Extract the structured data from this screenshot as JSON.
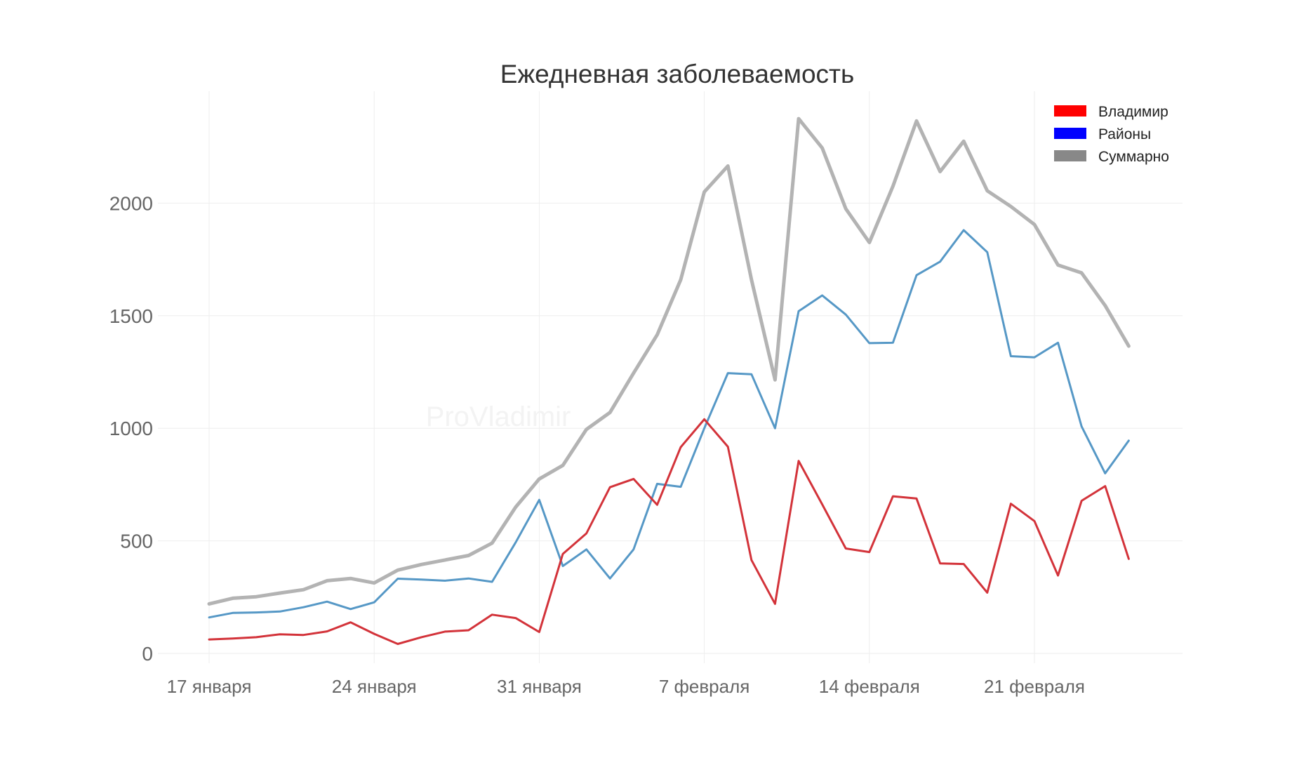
{
  "chart_data": {
    "type": "line",
    "title": "Ежедневная заболеваемость",
    "watermark": "ProVladimir",
    "xlabel": "",
    "ylabel": "",
    "ylim": [
      -40,
      2500
    ],
    "yticks": [
      0,
      500,
      1000,
      1500,
      2000
    ],
    "xtick_labels": [
      {
        "day": 0,
        "label": "17 января"
      },
      {
        "day": 7,
        "label": "24 января"
      },
      {
        "day": 14,
        "label": "31 января"
      },
      {
        "day": 21,
        "label": "7 февраля"
      },
      {
        "day": 28,
        "label": "14 февраля"
      },
      {
        "day": 35,
        "label": "21 февраля"
      }
    ],
    "x": [
      0,
      1,
      2,
      3,
      4,
      5,
      6,
      7,
      8,
      9,
      10,
      11,
      12,
      13,
      14,
      15,
      16,
      17,
      18,
      19,
      20,
      21,
      22,
      23,
      24,
      25,
      26,
      27,
      28,
      29,
      30,
      31,
      32,
      33,
      34,
      35,
      36,
      37,
      38,
      39
    ],
    "series": [
      {
        "name": "Суммарно",
        "color": "#b3b3b3",
        "legend_color": "#888888",
        "values": [
          220,
          245,
          252,
          268,
          283,
          323,
          333,
          313,
          370,
          395,
          415,
          435,
          490,
          650,
          775,
          835,
          995,
          1070,
          1245,
          1415,
          1660,
          2050,
          2165,
          1660,
          1215,
          2375,
          2245,
          1975,
          1825,
          2075,
          2365,
          2140,
          2275,
          2055,
          1985,
          1905,
          1725,
          1690,
          1545,
          1365
        ]
      },
      {
        "name": "Районы",
        "color": "#5698c6",
        "legend_color": "#0000ff",
        "values": [
          160,
          180,
          182,
          186,
          205,
          230,
          197,
          227,
          332,
          328,
          323,
          333,
          318,
          493,
          682,
          388,
          462,
          333,
          462,
          753,
          740,
          1000,
          1245,
          1240,
          1000,
          1520,
          1590,
          1505,
          1378,
          1380,
          1680,
          1740,
          1880,
          1782,
          1320,
          1315,
          1380,
          1008,
          800,
          945
        ]
      },
      {
        "name": "Владимир",
        "color": "#d3333a",
        "legend_color": "#ff0000",
        "values": [
          62,
          66,
          72,
          85,
          82,
          98,
          138,
          87,
          42,
          72,
          97,
          103,
          172,
          157,
          95,
          442,
          533,
          738,
          775,
          660,
          916,
          1040,
          918,
          415,
          220,
          855,
          662,
          466,
          450,
          698,
          688,
          400,
          397,
          270,
          665,
          588,
          346,
          678,
          743,
          420
        ]
      }
    ]
  }
}
